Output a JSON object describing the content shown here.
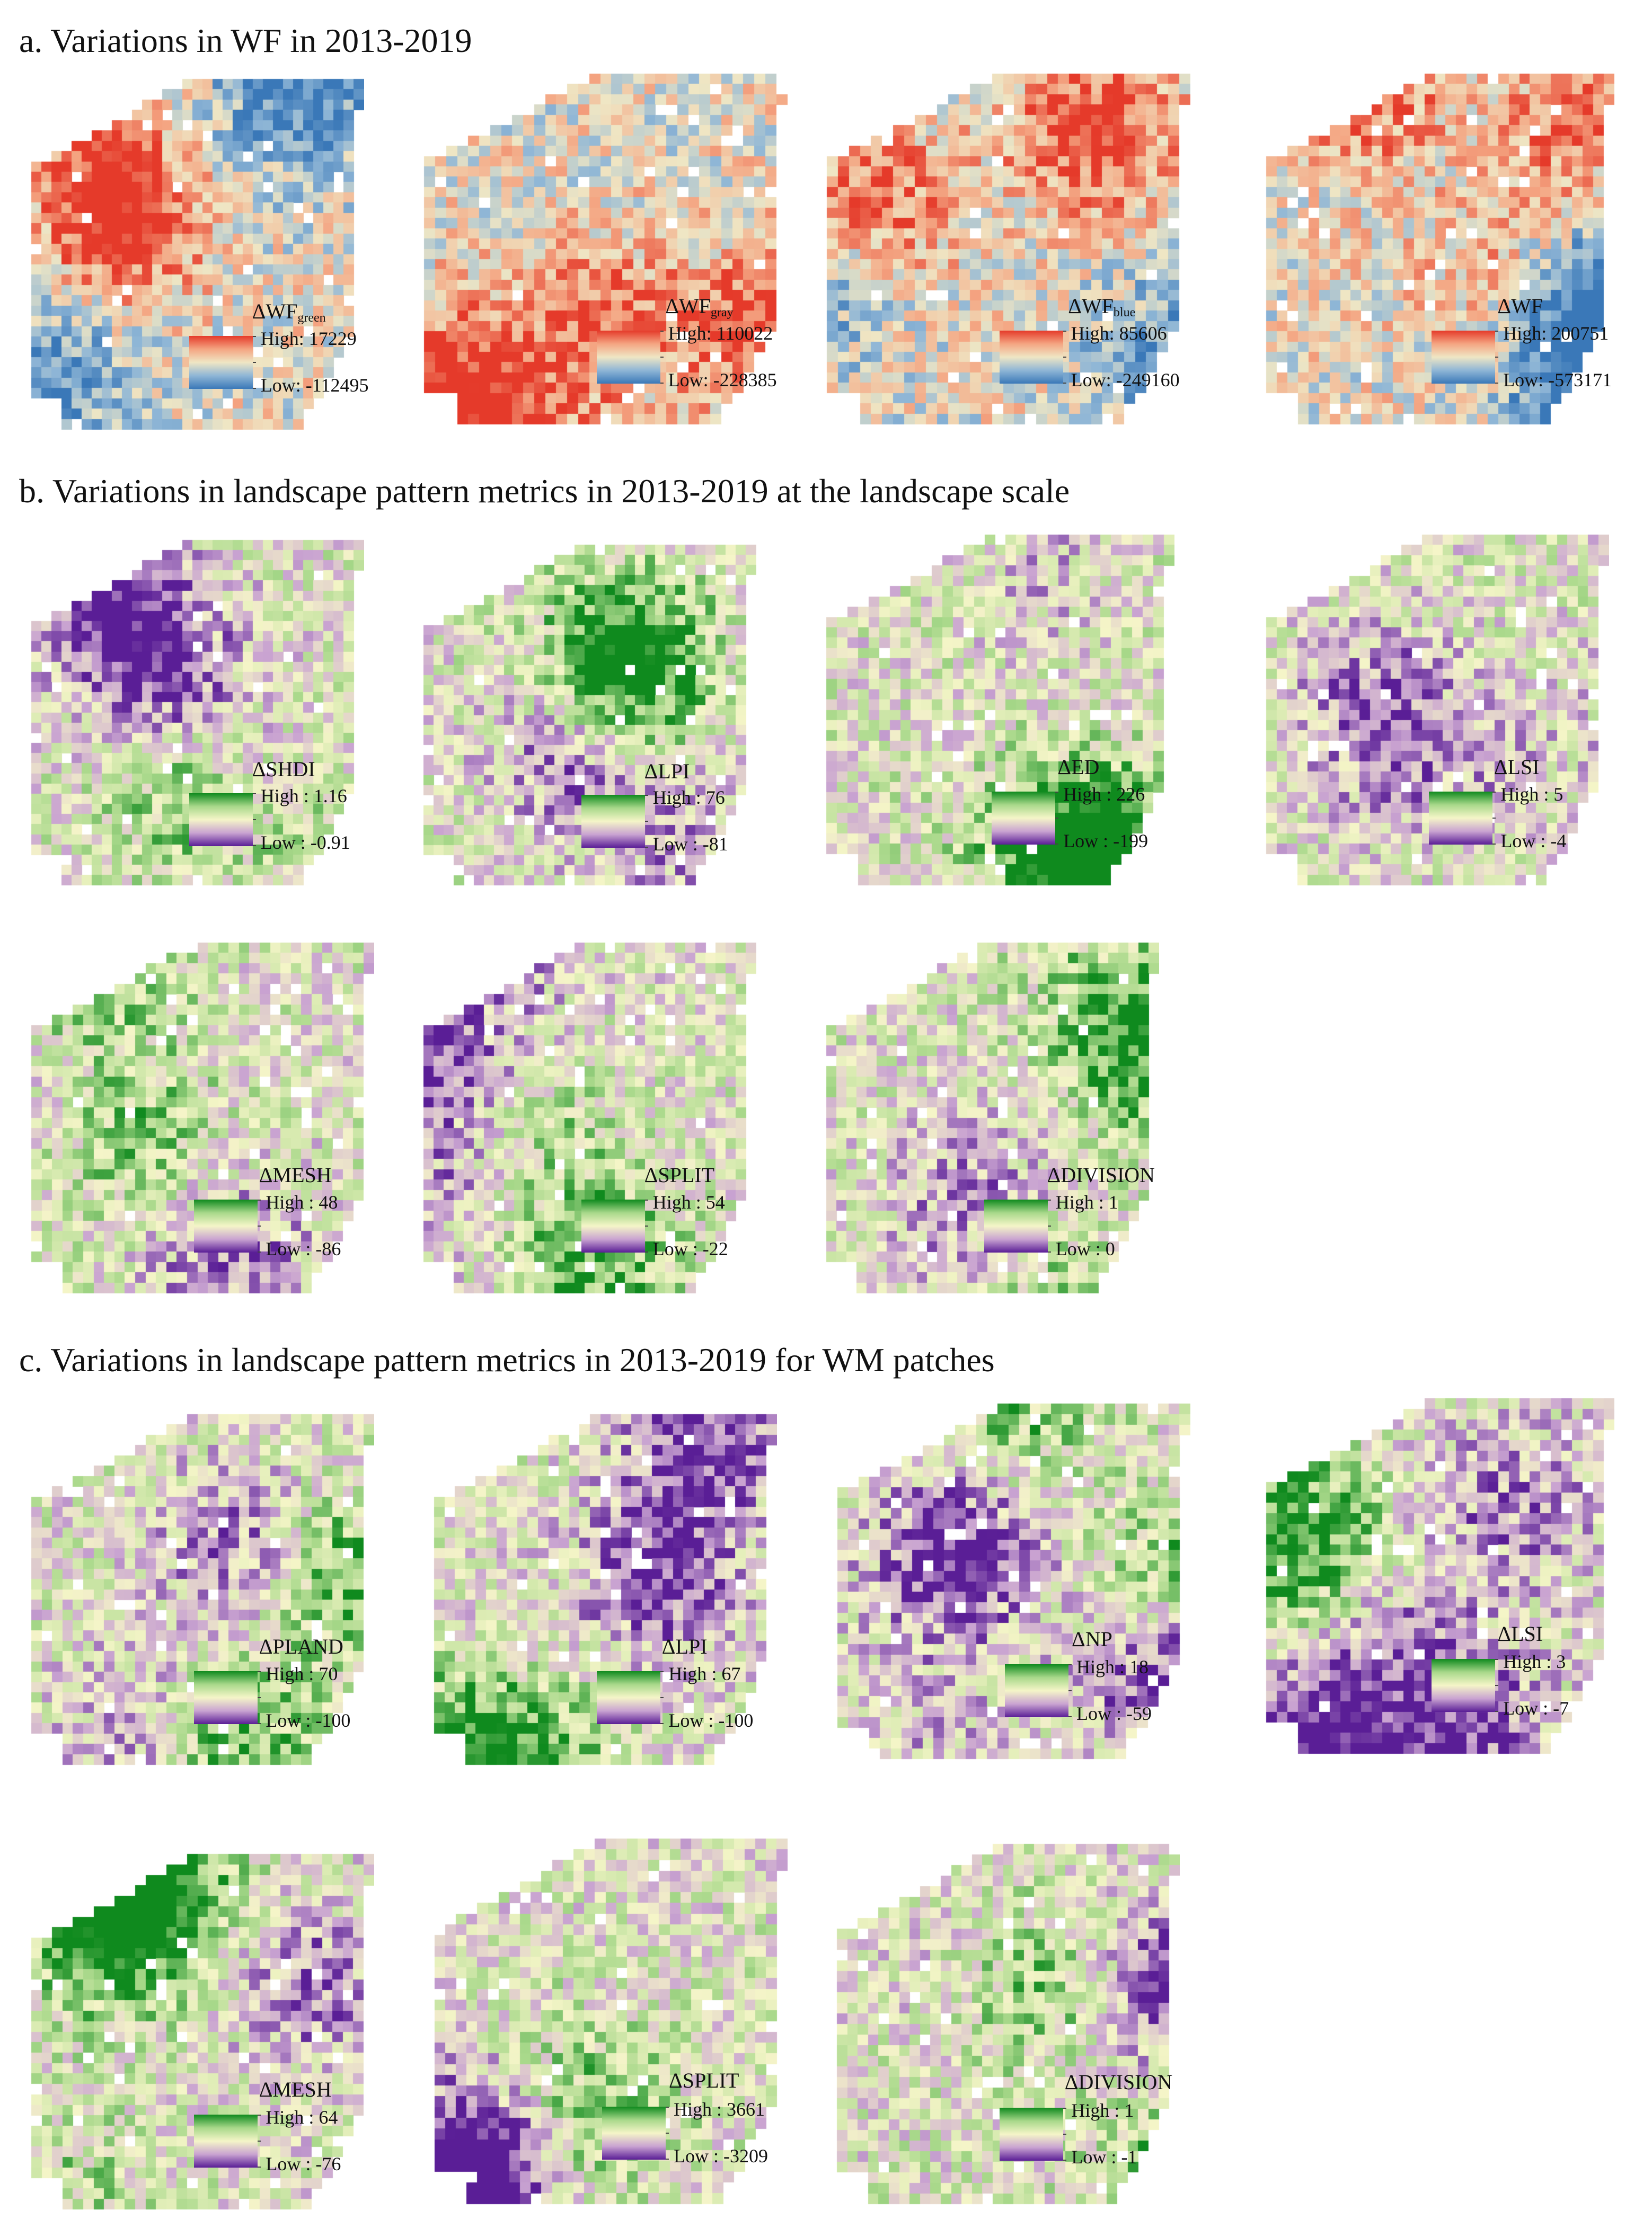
{
  "sections": [
    {
      "id": "a",
      "title": "a. Variations in WF in 2013-2019",
      "palette": "red-blue",
      "panels": [
        {
          "id": "a1",
          "metric": "ΔWF",
          "subscript": "green",
          "high": "High: 17229",
          "low": "Low: -112495"
        },
        {
          "id": "a2",
          "metric": "ΔWF",
          "subscript": "gray",
          "high": "High: 110022",
          "low": "Low: -228385"
        },
        {
          "id": "a3",
          "metric": "ΔWF",
          "subscript": "blue",
          "high": "High: 85606",
          "low": "Low: -249160"
        },
        {
          "id": "a4",
          "metric": "ΔWF",
          "subscript": "",
          "high": "High: 200751",
          "low": "Low: -573171"
        }
      ]
    },
    {
      "id": "b",
      "title": "b. Variations in landscape pattern metrics in 2013-2019 at the landscape scale",
      "palette": "green-purple",
      "panels": [
        {
          "id": "b1",
          "metric": "ΔSHDI",
          "subscript": "",
          "high": "High : 1.16",
          "low": "Low : -0.91"
        },
        {
          "id": "b2",
          "metric": "ΔLPI",
          "subscript": "",
          "high": "High : 76",
          "low": "Low : -81"
        },
        {
          "id": "b3",
          "metric": "ΔED",
          "subscript": "",
          "high": "High : 226",
          "low": "Low : -199"
        },
        {
          "id": "b4",
          "metric": "ΔLSI",
          "subscript": "",
          "high": "High : 5",
          "low": "Low : -4"
        },
        {
          "id": "b5",
          "metric": "ΔMESH",
          "subscript": "",
          "high": "High : 48",
          "low": "Low : -86"
        },
        {
          "id": "b6",
          "metric": "ΔSPLIT",
          "subscript": "",
          "high": "High : 54",
          "low": "Low : -22"
        },
        {
          "id": "b7",
          "metric": "ΔDIVISION",
          "subscript": "",
          "high": "High : 1",
          "low": "Low : 0"
        }
      ]
    },
    {
      "id": "c",
      "title": "c. Variations in landscape pattern metrics in 2013-2019 for WM patches",
      "palette": "green-purple",
      "panels": [
        {
          "id": "c1",
          "metric": "ΔPLAND",
          "subscript": "",
          "high": "High : 70",
          "low": "Low : -100"
        },
        {
          "id": "c2",
          "metric": "ΔLPI",
          "subscript": "",
          "high": "High : 67",
          "low": "Low : -100"
        },
        {
          "id": "c3",
          "metric": "ΔNP",
          "subscript": "",
          "high": "High : 18",
          "low": "Low : -59"
        },
        {
          "id": "c4",
          "metric": "ΔLSI",
          "subscript": "",
          "high": "High : 3",
          "low": "Low : -7"
        },
        {
          "id": "c5",
          "metric": "ΔMESH",
          "subscript": "",
          "high": "High : 64",
          "low": "Low : -76"
        },
        {
          "id": "c6",
          "metric": "ΔSPLIT",
          "subscript": "",
          "high": "High : 3661",
          "low": "Low : -3209"
        },
        {
          "id": "c7",
          "metric": "ΔDIVISION",
          "subscript": "",
          "high": "High : 1",
          "low": "Low : -1"
        }
      ]
    }
  ],
  "palettes": {
    "red-blue": [
      "#3a78b8",
      "#8fb6d6",
      "#efe6c4",
      "#f4a582",
      "#e53a2a"
    ],
    "green-purple": [
      "#5a1e96",
      "#c9a3d1",
      "#f5f5c8",
      "#a8d88a",
      "#0f8a1e"
    ]
  }
}
